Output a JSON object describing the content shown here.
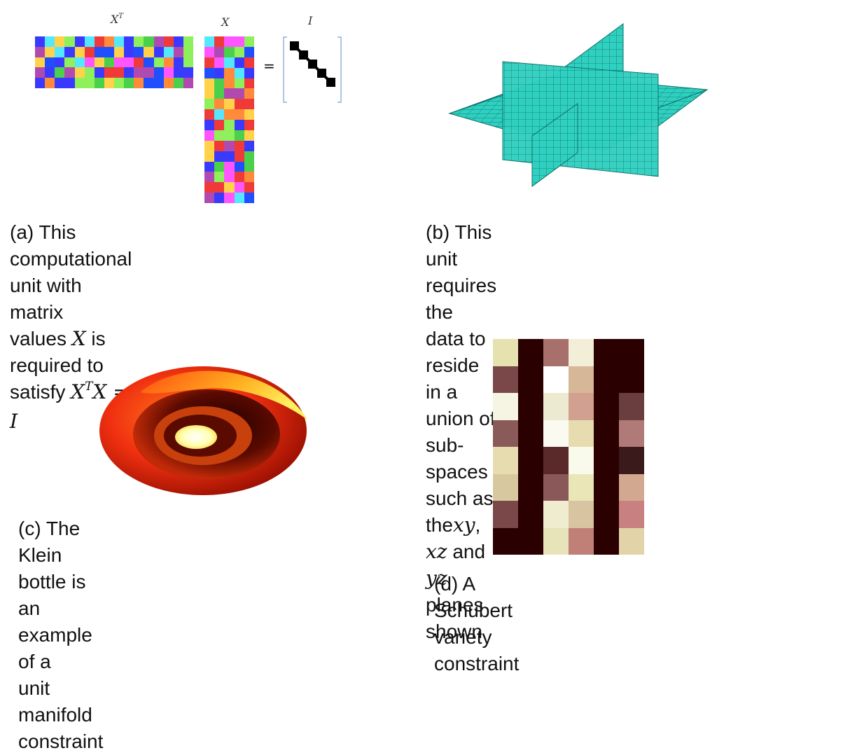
{
  "panel_a": {
    "label_xt": "X",
    "label_xt_sup": "T",
    "label_x": "X",
    "label_i": "I",
    "equals": "=",
    "caption_line1": "(a) This computational unit with matrix",
    "caption_line2_pre": "values ",
    "caption_line2_x": "X",
    "caption_line2_mid": " is required to satisfy ",
    "caption_line2_x2": "X",
    "caption_line2_t": "T",
    "caption_line2_x3": "X",
    "caption_line2_eq": " = ",
    "caption_line2_i": "I"
  },
  "panel_b": {
    "caption_line1": "(b) This unit requires the data to reside in a",
    "caption_line2_pre": "union of sub-spaces such as the",
    "caption_xy": "xy",
    "caption_comma": ", ",
    "caption_xz": "xz",
    "caption_and": " and",
    "caption_yz": "yz",
    "caption_line3_post": " planes shown",
    "plane_color": "#2fd0c0"
  },
  "panel_c": {
    "caption_line1": "(c) The Klein bottle is an example of a",
    "caption_line2": "unit manifold constraint"
  },
  "panel_d": {
    "caption": "(d) A Schubert variety constraint"
  },
  "palette_a": [
    "#f03a3a",
    "#ffd24a",
    "#8ef05a",
    "#ff55ff",
    "#3a3aff",
    "#54e8ff",
    "#b04ab0",
    "#4ad04a",
    "#ff8a3a",
    "#1f4fff"
  ]
}
